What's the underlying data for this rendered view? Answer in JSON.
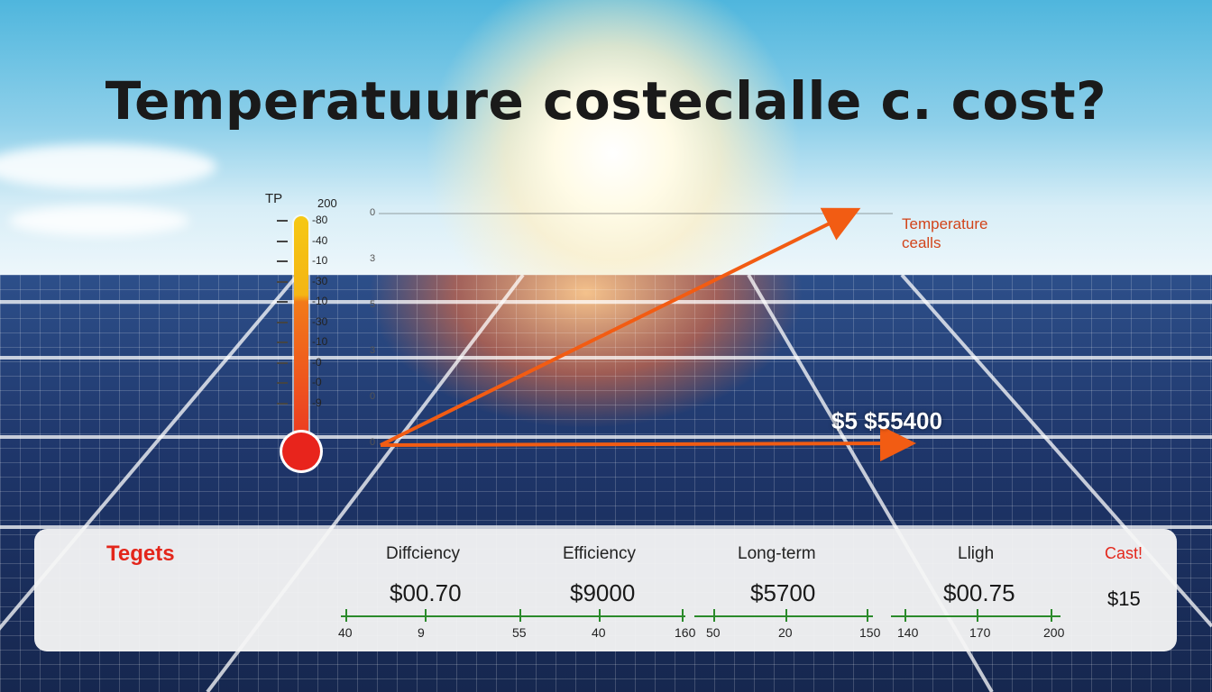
{
  "title": "Temperatuure costeclalle c. cost?",
  "thermometer": {
    "label": "TP",
    "top_value": "200",
    "ticks": [
      "80",
      "40",
      "10",
      "30",
      "10",
      "30",
      "10",
      "0",
      "0",
      "9"
    ]
  },
  "graph": {
    "y_labels": [
      "0",
      "3",
      "5",
      "3",
      "0",
      "0"
    ],
    "legend_lines": [
      "Temperature",
      "cealls"
    ],
    "price_label": "$5 $55400",
    "line_color": "#f25c13"
  },
  "bottom_bar": {
    "left_label": "Tegets",
    "columns": [
      {
        "header": "Diffciency",
        "value": "$00.70"
      },
      {
        "header": "Efficiency",
        "value": "$9000"
      },
      {
        "header": "Long-term",
        "value": "$5700"
      },
      {
        "header": "Lligh",
        "value": "$00.75"
      }
    ],
    "right_label": "Cast!",
    "right_value": "$15",
    "scale": [
      "40",
      "9",
      "55",
      "40",
      "160",
      "50",
      "20",
      "150",
      "140",
      "170",
      "200"
    ],
    "scale_color": "#2a8a2a"
  },
  "colors": {
    "accent_red": "#e3261b",
    "accent_orange": "#f25c13"
  }
}
